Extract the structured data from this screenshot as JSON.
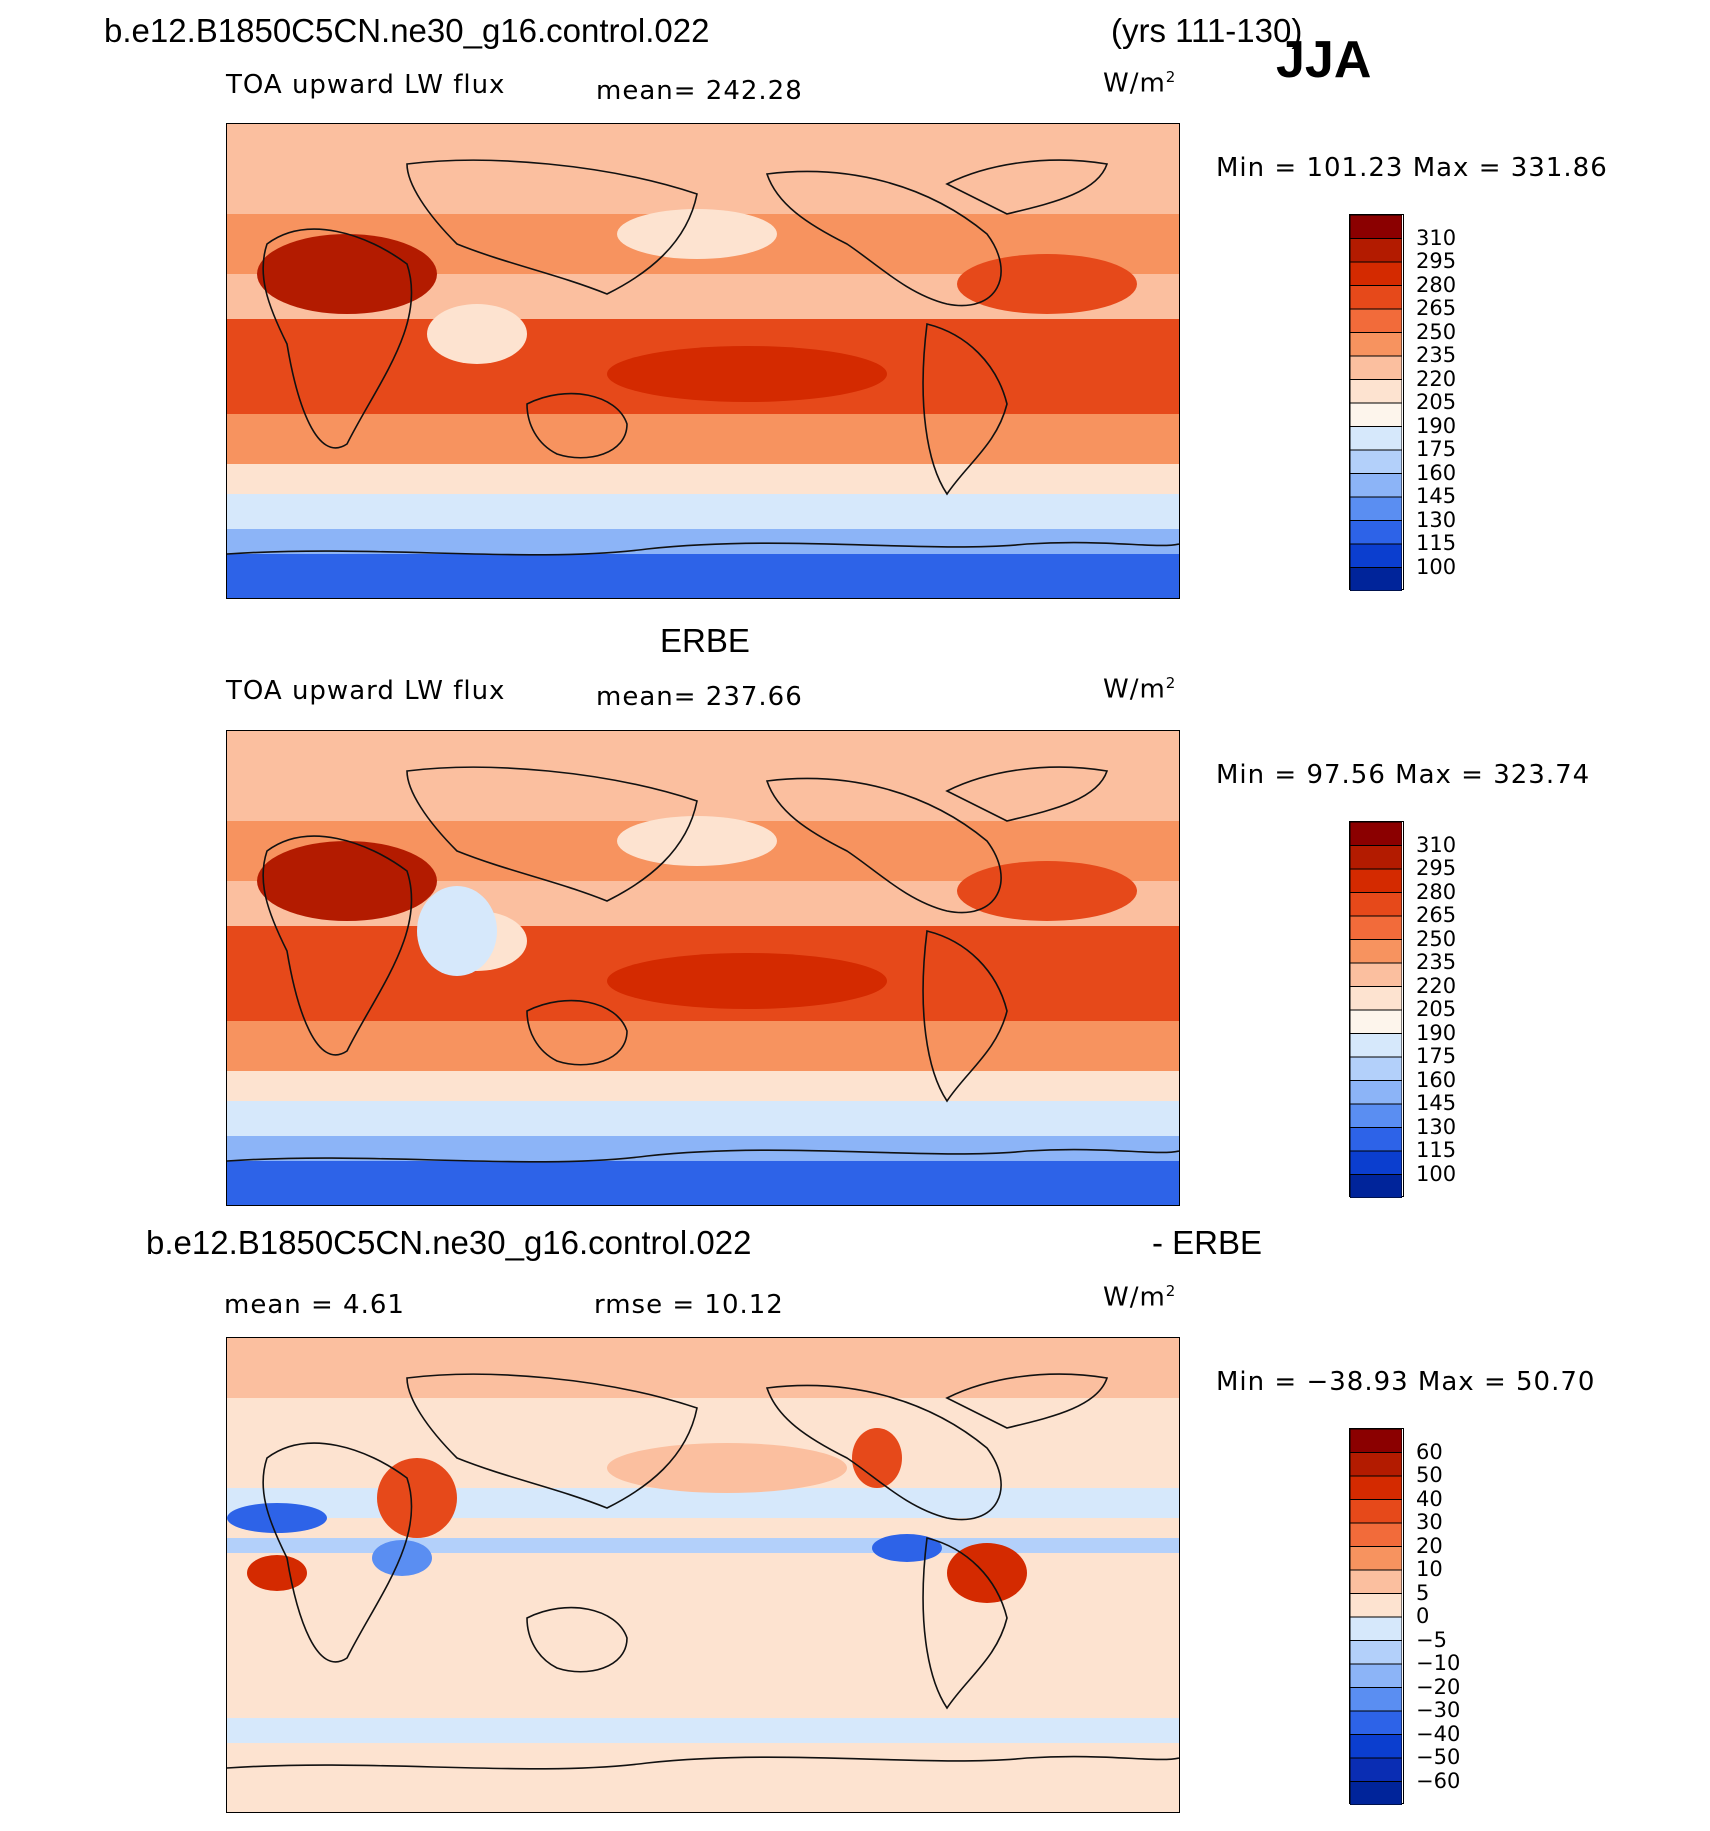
{
  "header": {
    "case_name": "b.e12.B1850C5CN.ne30_g16.control.022",
    "years": "(yrs 111-130)",
    "season": "JJA"
  },
  "panels": [
    {
      "id": "model",
      "title": "",
      "variable": "TOA upward LW flux",
      "stat_left": "",
      "stat_mid": "mean=  242.28",
      "units": "W/m",
      "units_sup": "2",
      "minmax": "Min  =  101.23  Max  =  331.86",
      "map_kind": "abs"
    },
    {
      "id": "obs",
      "title": "ERBE",
      "variable": "TOA upward LW flux",
      "stat_left": "",
      "stat_mid": "mean=  237.66",
      "units": "W/m",
      "units_sup": "2",
      "minmax": "Min  =    97.56  Max  =  323.74",
      "map_kind": "abs"
    },
    {
      "id": "diff",
      "title_left": "b.e12.B1850C5CN.ne30_g16.control.022",
      "title_right": "- ERBE",
      "variable": "",
      "stat_left": "mean  =      4.61",
      "stat_mid": "rmse  =     10.12",
      "units": "W/m",
      "units_sup": "2",
      "minmax": "Min  =  −38.93  Max  =     50.70",
      "map_kind": "diff"
    }
  ],
  "colorbars": {
    "abs": {
      "labels": [
        "310",
        "295",
        "280",
        "265",
        "250",
        "235",
        "220",
        "205",
        "190",
        "175",
        "160",
        "145",
        "130",
        "115",
        "100"
      ],
      "colors": [
        "#8b0000",
        "#b31b00",
        "#d42a00",
        "#e6491a",
        "#f26b3a",
        "#f7935f",
        "#fbbf9f",
        "#fde3d0",
        "#fdf5ec",
        "#d6e8fb",
        "#b3d0fa",
        "#8cb4f7",
        "#5a8ef2",
        "#2d63e8",
        "#0b3ecf",
        "#00249a"
      ]
    },
    "diff": {
      "labels": [
        "60",
        "50",
        "40",
        "30",
        "20",
        "10",
        "5",
        "0",
        "−5",
        "−10",
        "−20",
        "−30",
        "−40",
        "−50",
        "−60"
      ],
      "colors": [
        "#8b0000",
        "#b31b00",
        "#d42a00",
        "#e6491a",
        "#f26b3a",
        "#f7935f",
        "#fbbf9f",
        "#fde3d0",
        "#d6e8fb",
        "#b3d0fa",
        "#8cb4f7",
        "#5a8ef2",
        "#2d63e8",
        "#0b3ecf",
        "#0a2db3",
        "#00249a"
      ]
    }
  }
}
